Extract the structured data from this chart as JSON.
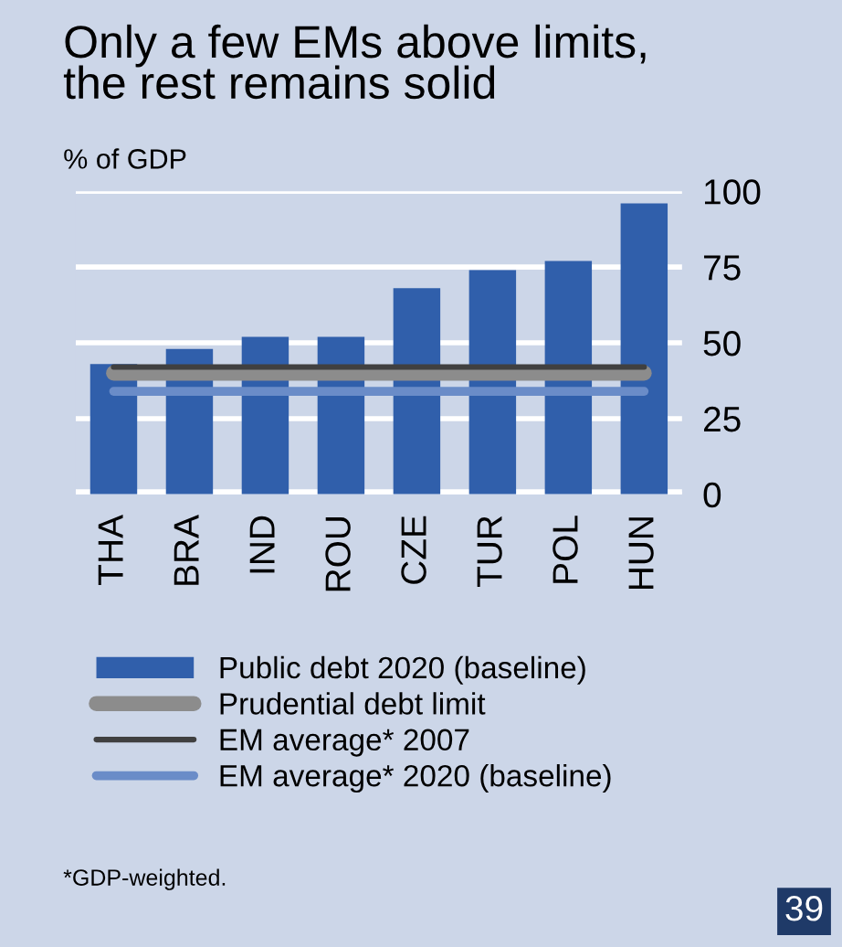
{
  "chart_data": {
    "type": "bar",
    "title": "Only a few EMs above limits,\nthe rest remains solid",
    "subtitle": "% of GDP",
    "categories": [
      "THA",
      "BRA",
      "IND",
      "ROU",
      "CZE",
      "TUR",
      "POL",
      "HUN"
    ],
    "series": [
      {
        "name": "Public debt 2020 (baseline)",
        "color": "#305fab",
        "values": [
          43,
          48,
          52,
          52,
          68,
          74,
          77,
          96
        ]
      },
      {
        "name": "Prudential debt limit",
        "type": "line",
        "color": "#8c8c8c",
        "values": [
          40,
          40,
          40,
          40,
          40,
          40,
          40,
          40
        ]
      },
      {
        "name": "EM average* 2007",
        "type": "line",
        "color": "#404040",
        "values": [
          42,
          42,
          42,
          42,
          42,
          42,
          42,
          42
        ]
      },
      {
        "name": "EM average* 2020 (baseline)",
        "type": "line",
        "color": "#6a8cc8",
        "values": [
          34,
          34,
          34,
          34,
          34,
          34,
          34,
          34
        ]
      }
    ],
    "ylim": [
      0,
      100
    ],
    "yticks": [
      0,
      25,
      50,
      75,
      100
    ],
    "grid": "y",
    "legend": "bottom",
    "annotations": [
      "*GDP-weighted.",
      "39"
    ]
  }
}
